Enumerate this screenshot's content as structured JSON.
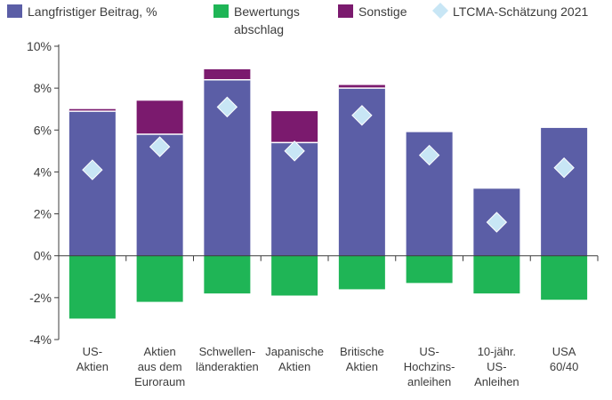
{
  "chart_data": {
    "type": "bar",
    "stacked": true,
    "categories": [
      [
        "US-",
        "Aktien"
      ],
      [
        "Aktien",
        "aus dem",
        "Euroraum"
      ],
      [
        "Schwellen-",
        "länderaktien"
      ],
      [
        "Japanische",
        "Aktien"
      ],
      [
        "Britische",
        "Aktien"
      ],
      [
        "US-",
        "Hochzins-",
        "anleihen"
      ],
      [
        "10-jähr.",
        "US-",
        "Anleihen"
      ],
      [
        "USA",
        "60/40"
      ]
    ],
    "series": [
      {
        "name": "Langfristiger Beitrag, %",
        "color": "#5b5ea6",
        "values": [
          6.9,
          5.8,
          8.4,
          5.4,
          8.0,
          5.9,
          3.2,
          6.1
        ]
      },
      {
        "name": "Bewertungsabschlag",
        "color": "#1fb556",
        "values": [
          -3.0,
          -2.2,
          -1.8,
          -1.9,
          -1.6,
          -1.3,
          -1.8,
          -2.1
        ]
      },
      {
        "name": "Sonstige",
        "color": "#7b1a6e",
        "values": [
          0.1,
          1.6,
          0.5,
          1.5,
          0.15,
          0.0,
          0.0,
          0.0
        ]
      }
    ],
    "estimate": {
      "name": "LTCMA-Schätzung 2021",
      "color": "#c8e6f5",
      "values": [
        4.1,
        5.2,
        7.1,
        5.0,
        6.7,
        4.8,
        1.6,
        4.2
      ]
    },
    "legend": [
      "Langfristiger Beitrag, %",
      "Bewertungsabschlag",
      "Sonstige",
      "LTCMA-Schätzung 2021"
    ],
    "legend_placement": "top",
    "yticks": [
      "10%",
      "8%",
      "6%",
      "4%",
      "2%",
      "0%",
      "-2%",
      "-4%"
    ],
    "ytick_values": [
      10,
      8,
      6,
      4,
      2,
      0,
      -2,
      -4
    ],
    "ylim": [
      -4,
      10
    ],
    "grid": false
  }
}
